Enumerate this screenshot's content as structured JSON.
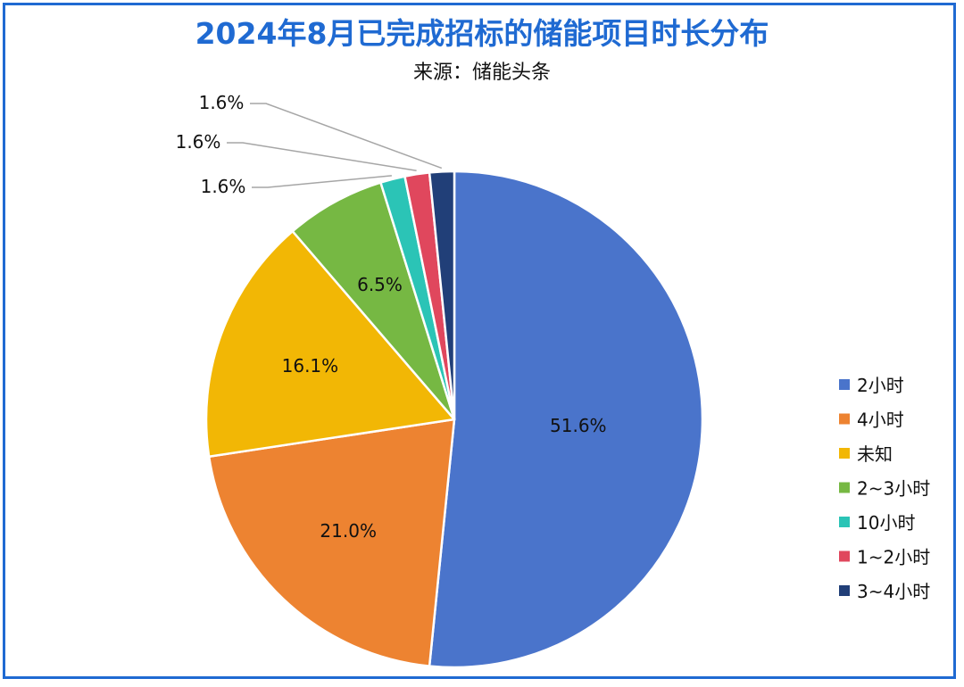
{
  "title": "2024年8月已完成招标的储能项目时长分布",
  "subtitle": "来源：储能头条",
  "chart_data": {
    "type": "pie",
    "title": "2024年8月已完成招标的储能项目时长分布",
    "subtitle": "来源：储能头条",
    "start_angle": "12 o'clock",
    "direction": "clockwise",
    "legend_position": "right",
    "slices": [
      {
        "name": "2小时",
        "value": 51.6,
        "label": "51.6%",
        "color": "#4a74cb"
      },
      {
        "name": "4小时",
        "value": 21.0,
        "label": "21.0%",
        "color": "#ed8331"
      },
      {
        "name": "未知",
        "value": 16.1,
        "label": "16.1%",
        "color": "#f2b705"
      },
      {
        "name": "2~3小时",
        "value": 6.5,
        "label": "6.5%",
        "color": "#76b843"
      },
      {
        "name": "10小时",
        "value": 1.6,
        "label": "1.6%",
        "color": "#2bc4b6"
      },
      {
        "name": "1~2小时",
        "value": 1.6,
        "label": "1.6%",
        "color": "#e0475d"
      },
      {
        "name": "3~4小时",
        "value": 1.6,
        "label": "1.6%",
        "color": "#213f78"
      }
    ]
  }
}
